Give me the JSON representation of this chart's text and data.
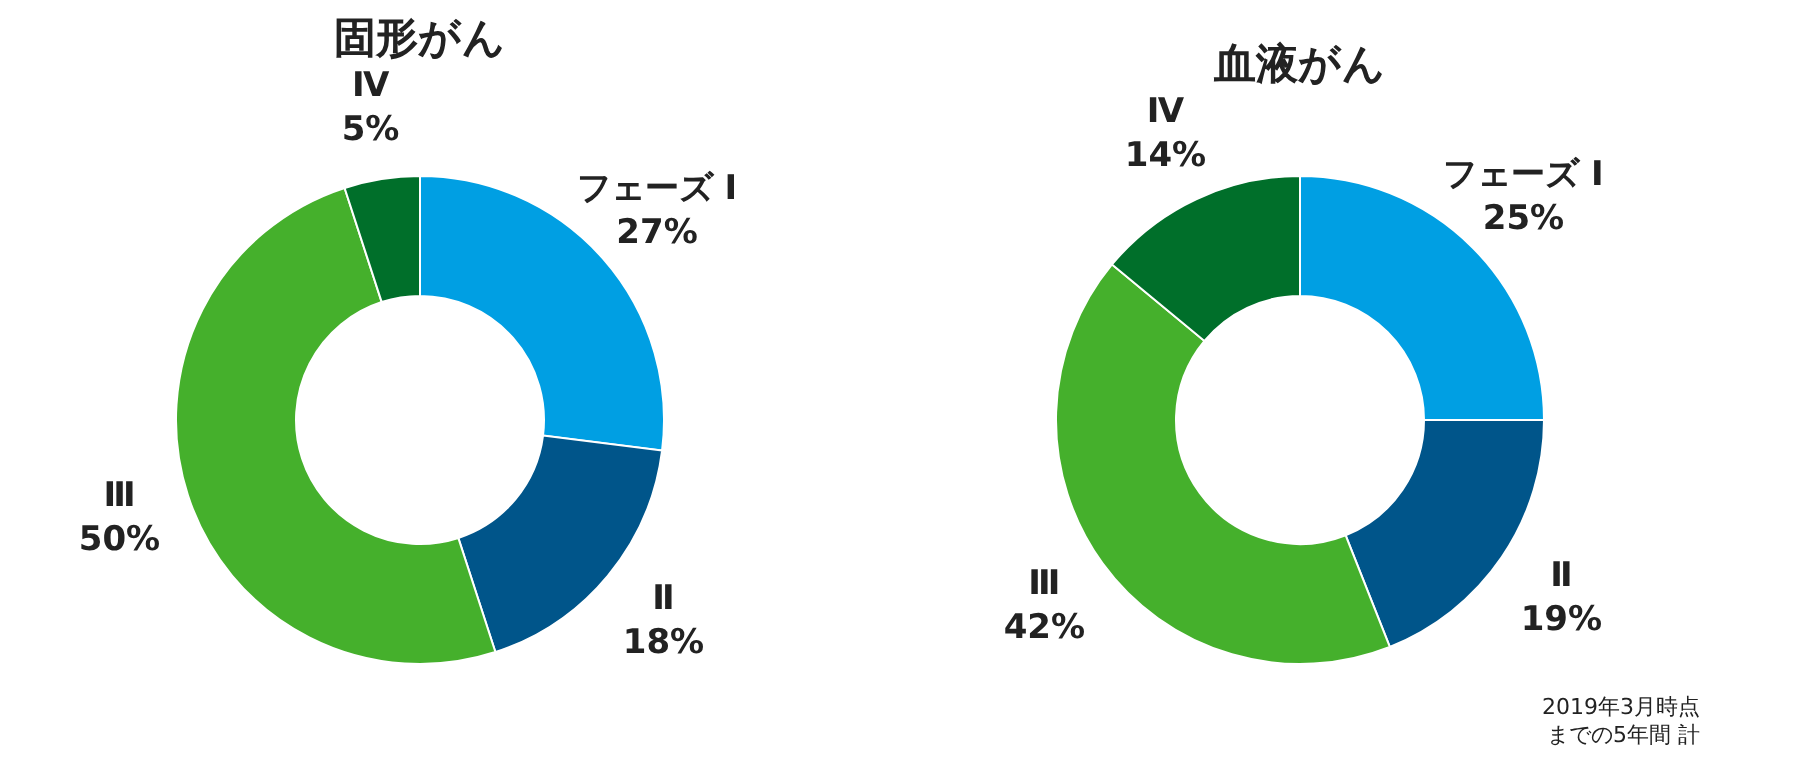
{
  "chart_data": [
    {
      "type": "donut",
      "title": "固形がん",
      "categories": [
        "フェーズ Ⅰ",
        "Ⅱ",
        "Ⅲ",
        "Ⅳ"
      ],
      "values": [
        27,
        18,
        50,
        5
      ],
      "value_labels": [
        "27%",
        "18%",
        "50%",
        "5%"
      ],
      "colors": [
        "#009fe3",
        "#00558a",
        "#45b02c",
        "#006f2a"
      ],
      "legend": false
    },
    {
      "type": "donut",
      "title": "血液がん",
      "categories": [
        "フェーズ Ⅰ",
        "Ⅱ",
        "Ⅲ",
        "Ⅳ"
      ],
      "values": [
        25,
        19,
        42,
        14
      ],
      "value_labels": [
        "25%",
        "19%",
        "42%",
        "14%"
      ],
      "colors": [
        "#009fe3",
        "#00558a",
        "#45b02c",
        "#006f2a"
      ],
      "legend": false,
      "annotations": [
        "2019年3月時点",
        "までの5年間 計"
      ]
    }
  ]
}
